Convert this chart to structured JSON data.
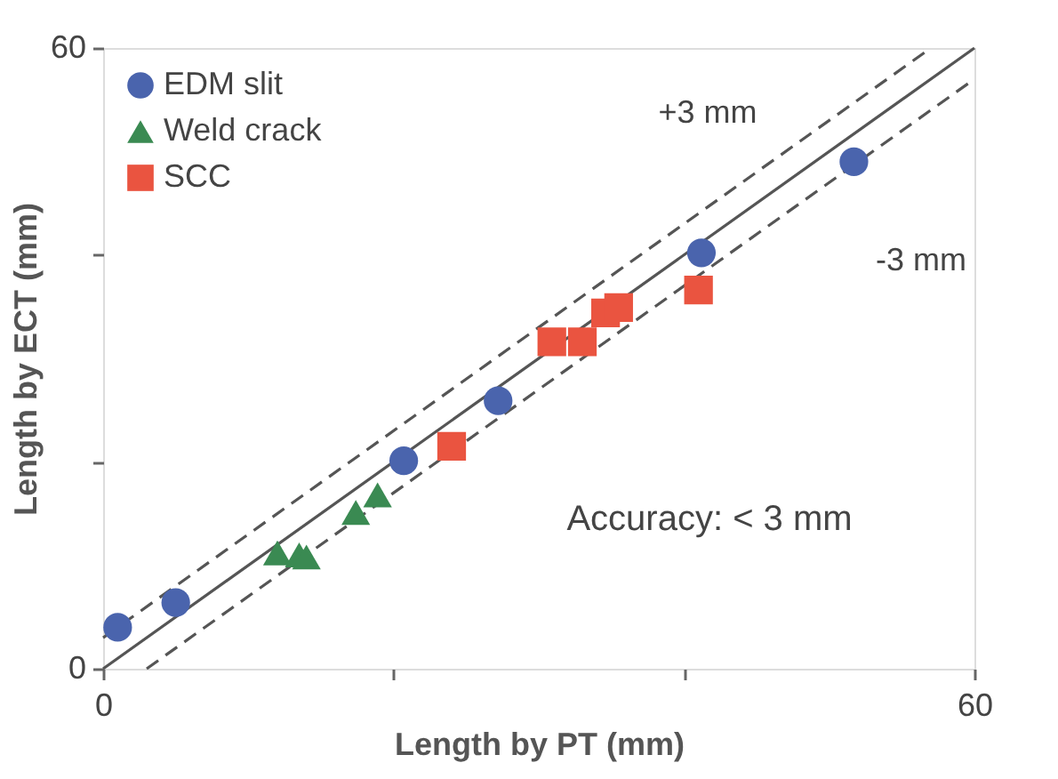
{
  "chart_data": {
    "type": "scatter",
    "xlabel": "Length by PT (mm)",
    "ylabel": "Length by ECT (mm)",
    "xlim": [
      0,
      60
    ],
    "ylim": [
      0,
      60
    ],
    "xticks": [
      0,
      {
        "value": 20,
        "label": null
      },
      {
        "value": 40,
        "label": null
      },
      60
    ],
    "yticks": [
      0,
      {
        "value": 20,
        "label": null
      },
      {
        "value": 40,
        "label": null
      },
      60
    ],
    "grid": false,
    "legend": "top left",
    "series": [
      {
        "name": "EDM slit",
        "color": "#4a64ad",
        "marker": "circle",
        "x": [
          1,
          5,
          20.7,
          27.2,
          41.2,
          51.7
        ],
        "values": [
          4,
          6.4,
          20.1,
          25.9,
          40.2,
          49
        ]
      },
      {
        "name": "Weld crack",
        "color": "#3a8a52",
        "marker": "triangle",
        "x": [
          12,
          13.5,
          14,
          17.4,
          18.9
        ],
        "values": [
          11.2,
          11,
          10.8,
          15.1,
          16.8
        ]
      },
      {
        "name": "SCC",
        "color": "#ea5440",
        "marker": "square",
        "x": [
          24,
          30.9,
          33,
          34.6,
          35.5,
          41
        ],
        "values": [
          21.5,
          31.6,
          31.6,
          34.4,
          34.9,
          36.6
        ]
      },
      {
        "type": "line",
        "color": "#555555",
        "line_style": "solid",
        "x": [
          0,
          60
        ],
        "values": [
          0,
          60
        ]
      },
      {
        "type": "line",
        "color": "#555555",
        "line_style": "dashed",
        "x": [
          0,
          57
        ],
        "values": [
          3,
          60
        ]
      },
      {
        "type": "line",
        "color": "#555555",
        "line_style": "dashed",
        "x": [
          3,
          60
        ],
        "values": [
          0,
          57
        ]
      }
    ],
    "annotations": [
      "+3 mm",
      "-3 mm",
      "Accuracy: < 3 mm"
    ]
  }
}
